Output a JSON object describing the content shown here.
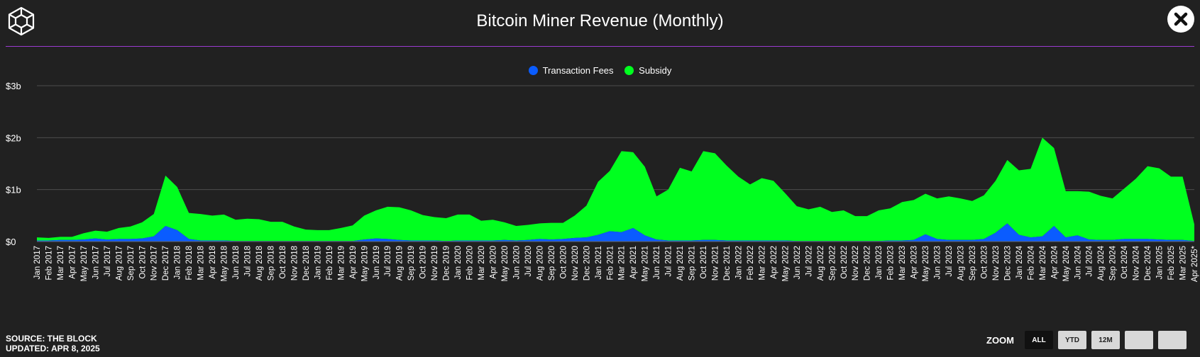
{
  "header": {
    "title": "Bitcoin Miner Revenue (Monthly)"
  },
  "icons": {
    "logo": "the-block-logo-icon",
    "close": "close-icon"
  },
  "colors": {
    "fees": "#0a5cff",
    "subsidy": "#00ff1f",
    "accent": "#9b3bd1"
  },
  "legend": {
    "fees_label": "Transaction Fees",
    "subsidy_label": "Subsidy"
  },
  "footer": {
    "source": "SOURCE: THE BLOCK",
    "updated": "UPDATED: APR 8, 2025"
  },
  "zoom": {
    "label": "ZOOM",
    "buttons": [
      "ALL",
      "YTD",
      "12M",
      "",
      ""
    ],
    "active": "ALL"
  },
  "chart_data": {
    "type": "area",
    "stacked": true,
    "title": "Bitcoin Miner Revenue (Monthly)",
    "ylim": [
      0,
      3
    ],
    "yticks": [
      0,
      1,
      2,
      3
    ],
    "ytick_labels": [
      "$0",
      "$1b",
      "$2b",
      "$3b"
    ],
    "grid": true,
    "legend_position": "top-center",
    "categories": [
      "Jan 2017",
      "Feb 2017",
      "Mar 2017",
      "Apr 2017",
      "May 2017",
      "Jun 2017",
      "Jul 2017",
      "Aug 2017",
      "Sep 2017",
      "Oct 2017",
      "Nov 2017",
      "Dec 2017",
      "Jan 2018",
      "Feb 2018",
      "Mar 2018",
      "Apr 2018",
      "May 2018",
      "Jun 2018",
      "Jul 2018",
      "Aug 2018",
      "Sep 2018",
      "Oct 2018",
      "Nov 2018",
      "Dec 2018",
      "Jan 2019",
      "Feb 2019",
      "Mar 2019",
      "Apr 2019",
      "May 2019",
      "Jun 2019",
      "Jul 2019",
      "Aug 2019",
      "Sep 2019",
      "Oct 2019",
      "Nov 2019",
      "Dec 2019",
      "Jan 2020",
      "Feb 2020",
      "Mar 2020",
      "Apr 2020",
      "May 2020",
      "Jun 2020",
      "Jul 2020",
      "Aug 2020",
      "Sep 2020",
      "Oct 2020",
      "Nov 2020",
      "Dec 2020",
      "Jan 2021",
      "Feb 2021",
      "Mar 2021",
      "Apr 2021",
      "May 2021",
      "Jun 2021",
      "Jul 2021",
      "Aug 2021",
      "Sep 2021",
      "Oct 2021",
      "Nov 2021",
      "Dec 2021",
      "Jan 2022",
      "Feb 2022",
      "Mar 2022",
      "Apr 2022",
      "May 2022",
      "Jun 2022",
      "Jul 2022",
      "Aug 2022",
      "Sep 2022",
      "Oct 2022",
      "Nov 2022",
      "Dec 2022",
      "Jan 2023",
      "Feb 2023",
      "Mar 2023",
      "Apr 2023",
      "May 2023",
      "Jun 2023",
      "Jul 2023",
      "Aug 2023",
      "Sep 2023",
      "Oct 2023",
      "Nov 2023",
      "Dec 2023",
      "Jan 2024",
      "Feb 2024",
      "Mar 2024",
      "Apr 2024",
      "May 2024",
      "Jun 2024",
      "Jul 2024",
      "Aug 2024",
      "Sep 2024",
      "Oct 2024",
      "Nov 2024",
      "Dec 2024",
      "Jan 2025",
      "Feb 2025",
      "Mar 2025",
      "Apr 2025*"
    ],
    "series": [
      {
        "name": "Transaction Fees",
        "unit": "$b",
        "values": [
          0.02,
          0.02,
          0.03,
          0.03,
          0.04,
          0.06,
          0.04,
          0.05,
          0.05,
          0.06,
          0.1,
          0.3,
          0.22,
          0.05,
          0.02,
          0.02,
          0.02,
          0.01,
          0.01,
          0.01,
          0.01,
          0.01,
          0.01,
          0.01,
          0.01,
          0.01,
          0.01,
          0.01,
          0.04,
          0.06,
          0.05,
          0.03,
          0.02,
          0.02,
          0.02,
          0.01,
          0.02,
          0.02,
          0.02,
          0.02,
          0.03,
          0.02,
          0.03,
          0.05,
          0.04,
          0.05,
          0.07,
          0.08,
          0.13,
          0.2,
          0.18,
          0.26,
          0.12,
          0.04,
          0.02,
          0.02,
          0.02,
          0.03,
          0.03,
          0.02,
          0.02,
          0.02,
          0.02,
          0.02,
          0.02,
          0.01,
          0.01,
          0.01,
          0.01,
          0.01,
          0.01,
          0.01,
          0.01,
          0.02,
          0.02,
          0.03,
          0.14,
          0.05,
          0.03,
          0.03,
          0.03,
          0.05,
          0.17,
          0.35,
          0.13,
          0.08,
          0.1,
          0.3,
          0.08,
          0.12,
          0.04,
          0.03,
          0.03,
          0.05,
          0.05,
          0.05,
          0.04,
          0.03,
          0.03,
          0.01
        ]
      },
      {
        "name": "Subsidy",
        "unit": "$b",
        "values": [
          0.06,
          0.05,
          0.06,
          0.06,
          0.12,
          0.15,
          0.15,
          0.21,
          0.24,
          0.31,
          0.43,
          0.97,
          0.83,
          0.5,
          0.51,
          0.48,
          0.5,
          0.41,
          0.43,
          0.42,
          0.37,
          0.37,
          0.28,
          0.22,
          0.21,
          0.21,
          0.25,
          0.3,
          0.46,
          0.54,
          0.62,
          0.63,
          0.58,
          0.49,
          0.45,
          0.44,
          0.5,
          0.5,
          0.38,
          0.4,
          0.34,
          0.28,
          0.29,
          0.3,
          0.32,
          0.31,
          0.43,
          0.61,
          1.02,
          1.16,
          1.56,
          1.46,
          1.32,
          0.83,
          0.98,
          1.4,
          1.33,
          1.71,
          1.67,
          1.44,
          1.23,
          1.08,
          1.2,
          1.15,
          0.91,
          0.67,
          0.61,
          0.66,
          0.56,
          0.59,
          0.48,
          0.48,
          0.59,
          0.62,
          0.74,
          0.77,
          0.78,
          0.78,
          0.84,
          0.8,
          0.75,
          0.84,
          1.0,
          1.22,
          1.24,
          1.32,
          1.9,
          1.5,
          0.89,
          0.85,
          0.92,
          0.85,
          0.8,
          0.97,
          1.16,
          1.4,
          1.37,
          1.22,
          1.22,
          0.32
        ]
      }
    ]
  }
}
